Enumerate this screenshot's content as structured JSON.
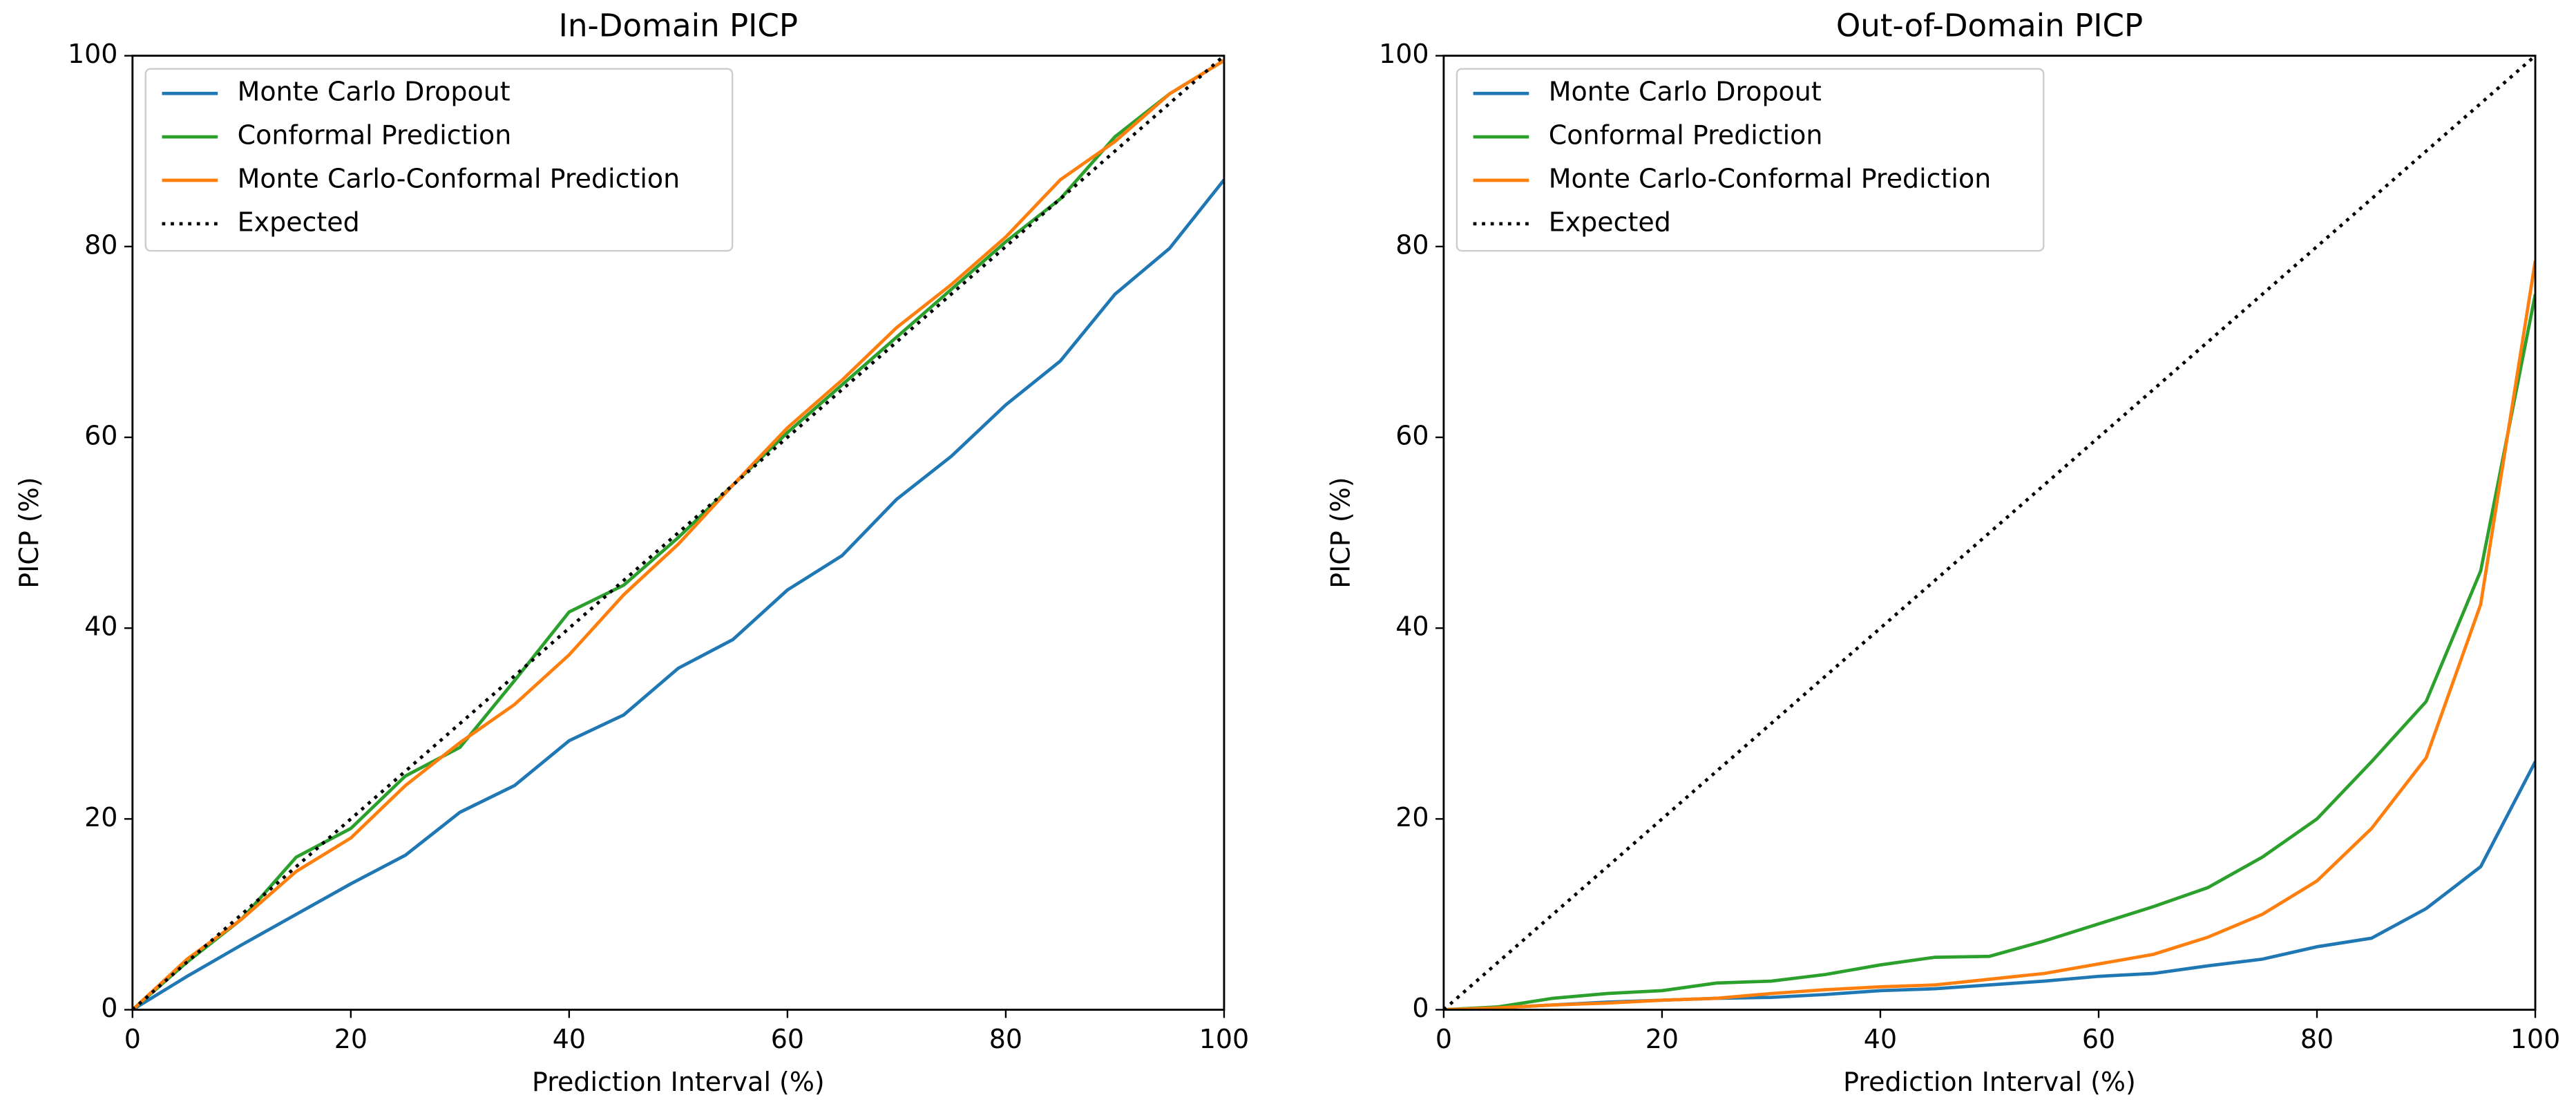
{
  "chart_data": [
    {
      "type": "line",
      "title": "In-Domain PICP",
      "xlabel": "Prediction Interval (%)",
      "ylabel": "PICP (%)",
      "x": [
        0,
        5,
        10,
        15,
        20,
        25,
        30,
        35,
        40,
        45,
        50,
        55,
        60,
        65,
        70,
        75,
        80,
        85,
        90,
        95,
        100
      ],
      "xlim": [
        0,
        100
      ],
      "ylim": [
        0,
        100
      ],
      "xticks": [
        0,
        20,
        40,
        60,
        80,
        100
      ],
      "yticks": [
        0,
        20,
        40,
        60,
        80,
        100
      ],
      "legend": "upper left",
      "series": [
        {
          "name": "Monte Carlo Dropout",
          "color": "#1f77b4",
          "values": [
            0,
            3.5,
            6.8,
            10,
            13.2,
            16.2,
            20.7,
            23.5,
            28.2,
            30.9,
            35.8,
            38.8,
            44,
            47.6,
            53.5,
            58,
            63.4,
            68,
            75,
            79.8,
            87
          ]
        },
        {
          "name": "Conformal Prediction",
          "color": "#2ca02c",
          "values": [
            0,
            5,
            9.5,
            16,
            19,
            24.5,
            27.5,
            34.5,
            41.7,
            44.5,
            49.5,
            55,
            60.5,
            65.5,
            70.5,
            75.5,
            80.5,
            85,
            91.5,
            96,
            99.5
          ]
        },
        {
          "name": "Monte Carlo-Conformal Prediction",
          "color": "#ff7f0e",
          "values": [
            0,
            5.3,
            9.5,
            14.5,
            18,
            23.5,
            28,
            32,
            37.2,
            43.5,
            48.8,
            55,
            61,
            66,
            71.5,
            76,
            81,
            87,
            91,
            96,
            99.5
          ]
        },
        {
          "name": "Expected",
          "color": "#000000",
          "linestyle": "dotted",
          "values": [
            0,
            5,
            10,
            15,
            20,
            25,
            30,
            35,
            40,
            45,
            50,
            55,
            60,
            65,
            70,
            75,
            80,
            85,
            90,
            95,
            100
          ]
        }
      ]
    },
    {
      "type": "line",
      "title": "Out-of-Domain PICP",
      "xlabel": "Prediction Interval (%)",
      "ylabel": "PICP (%)",
      "x": [
        0,
        5,
        10,
        15,
        20,
        25,
        30,
        35,
        40,
        45,
        50,
        55,
        60,
        65,
        70,
        75,
        80,
        85,
        90,
        95,
        100
      ],
      "xlim": [
        0,
        100
      ],
      "ylim": [
        0,
        100
      ],
      "xticks": [
        0,
        20,
        40,
        60,
        80,
        100
      ],
      "yticks": [
        0,
        20,
        40,
        60,
        80,
        100
      ],
      "legend": "upper left",
      "series": [
        {
          "name": "Monte Carlo Dropout",
          "color": "#1f77b4",
          "values": [
            0,
            0.2,
            0.5,
            0.8,
            1,
            1.2,
            1.3,
            1.6,
            2,
            2.2,
            2.6,
            3,
            3.5,
            3.8,
            4.6,
            5.3,
            6.6,
            7.5,
            10.6,
            15,
            26
          ]
        },
        {
          "name": "Conformal Prediction",
          "color": "#2ca02c",
          "values": [
            0,
            0.3,
            1.2,
            1.7,
            2,
            2.8,
            3,
            3.7,
            4.7,
            5.5,
            5.6,
            7.2,
            9,
            10.8,
            12.8,
            16,
            20,
            26,
            32.3,
            46,
            75
          ]
        },
        {
          "name": "Monte Carlo-Conformal Prediction",
          "color": "#ff7f0e",
          "values": [
            0,
            0.2,
            0.5,
            0.7,
            1,
            1.2,
            1.7,
            2.1,
            2.4,
            2.6,
            3.2,
            3.8,
            4.8,
            5.8,
            7.6,
            10,
            13.5,
            19,
            26.4,
            42.5,
            78.5
          ]
        },
        {
          "name": "Expected",
          "color": "#000000",
          "linestyle": "dotted",
          "values": [
            0,
            5,
            10,
            15,
            20,
            25,
            30,
            35,
            40,
            45,
            50,
            55,
            60,
            65,
            70,
            75,
            80,
            85,
            90,
            95,
            100
          ]
        }
      ]
    }
  ]
}
